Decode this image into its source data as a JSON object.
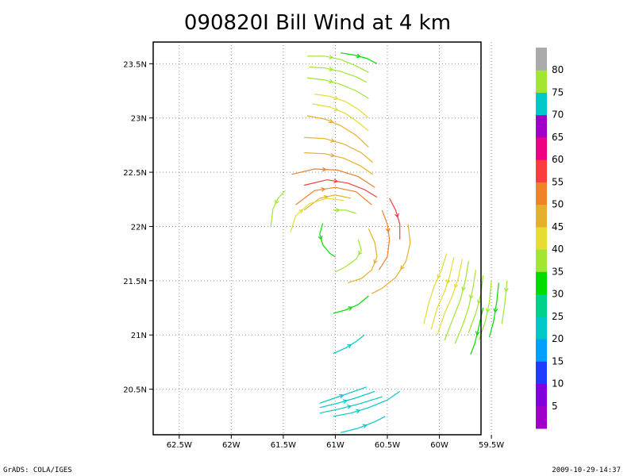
{
  "chart_data": {
    "type": "streamline",
    "title": "090820I Bill Wind at 4 km",
    "x_ticks": [
      "62.5W",
      "62W",
      "61.5W",
      "61W",
      "60.5W",
      "60W",
      "59.5W"
    ],
    "x_values": [
      -62.5,
      -62.0,
      -61.5,
      -61.0,
      -60.5,
      -60.0,
      -59.5
    ],
    "y_ticks": [
      "20.5N",
      "21N",
      "21.5N",
      "22N",
      "22.5N",
      "23N",
      "23.5N"
    ],
    "y_values": [
      20.5,
      21.0,
      21.5,
      22.0,
      22.5,
      23.0,
      23.5
    ],
    "xlim": [
      -62.75,
      -59.6
    ],
    "ylim": [
      20.08,
      23.7
    ],
    "grid": true,
    "colorbar": {
      "labels": [
        "5",
        "10",
        "15",
        "20",
        "25",
        "30",
        "35",
        "40",
        "45",
        "50",
        "55",
        "60",
        "65",
        "70",
        "75",
        "80"
      ],
      "colors": [
        "#a000c8",
        "#8200dc",
        "#1e3cff",
        "#00a0ff",
        "#00c8c8",
        "#00d28c",
        "#00dc00",
        "#a0e632",
        "#e6dc32",
        "#e6af2d",
        "#f08228",
        "#fa3c3c",
        "#f00082",
        "#a000c8",
        "#00c8c8",
        "#a0e632",
        "#aaaaaa"
      ]
    },
    "streamlines": [
      {
        "color": "#00dc00",
        "points": [
          [
            -60.95,
            23.6
          ],
          [
            -60.82,
            23.58
          ],
          [
            -60.7,
            23.55
          ],
          [
            -60.6,
            23.5
          ]
        ]
      },
      {
        "color": "#a0e632",
        "points": [
          [
            -61.27,
            23.57
          ],
          [
            -61.1,
            23.57
          ],
          [
            -60.95,
            23.54
          ],
          [
            -60.8,
            23.48
          ],
          [
            -60.68,
            23.42
          ]
        ]
      },
      {
        "color": "#a0e632",
        "points": [
          [
            -61.25,
            23.47
          ],
          [
            -61.1,
            23.46
          ],
          [
            -60.95,
            23.43
          ],
          [
            -60.8,
            23.38
          ],
          [
            -60.7,
            23.33
          ]
        ]
      },
      {
        "color": "#a0e632",
        "points": [
          [
            -61.27,
            23.37
          ],
          [
            -61.1,
            23.35
          ],
          [
            -60.95,
            23.31
          ],
          [
            -60.8,
            23.25
          ],
          [
            -60.68,
            23.18
          ]
        ]
      },
      {
        "color": "#e6dc32",
        "points": [
          [
            -61.2,
            23.22
          ],
          [
            -61.05,
            23.2
          ],
          [
            -60.9,
            23.15
          ],
          [
            -60.78,
            23.08
          ],
          [
            -60.68,
            23.0
          ]
        ]
      },
      {
        "color": "#e6dc32",
        "points": [
          [
            -61.22,
            23.13
          ],
          [
            -61.05,
            23.1
          ],
          [
            -60.9,
            23.04
          ],
          [
            -60.78,
            22.96
          ],
          [
            -60.68,
            22.88
          ]
        ]
      },
      {
        "color": "#e6af2d",
        "points": [
          [
            -61.27,
            23.02
          ],
          [
            -61.1,
            22.99
          ],
          [
            -60.95,
            22.93
          ],
          [
            -60.8,
            22.84
          ],
          [
            -60.68,
            22.73
          ]
        ]
      },
      {
        "color": "#e6af2d",
        "points": [
          [
            -61.3,
            22.82
          ],
          [
            -61.1,
            22.81
          ],
          [
            -60.92,
            22.76
          ],
          [
            -60.75,
            22.68
          ],
          [
            -60.64,
            22.59
          ]
        ]
      },
      {
        "color": "#e6af2d",
        "points": [
          [
            -61.3,
            22.68
          ],
          [
            -61.1,
            22.67
          ],
          [
            -60.92,
            22.63
          ],
          [
            -60.76,
            22.56
          ],
          [
            -60.64,
            22.48
          ]
        ]
      },
      {
        "color": "#f08228",
        "points": [
          [
            -61.42,
            22.48
          ],
          [
            -61.2,
            22.53
          ],
          [
            -60.98,
            22.52
          ],
          [
            -60.78,
            22.46
          ],
          [
            -60.62,
            22.36
          ]
        ]
      },
      {
        "color": "#fa3c3c",
        "points": [
          [
            -61.3,
            22.38
          ],
          [
            -61.08,
            22.43
          ],
          [
            -60.88,
            22.4
          ],
          [
            -60.72,
            22.34
          ],
          [
            -60.6,
            22.27
          ]
        ]
      },
      {
        "color": "#a0e632",
        "points": [
          [
            -61.48,
            22.33
          ],
          [
            -61.55,
            22.26
          ],
          [
            -61.6,
            22.16
          ],
          [
            -61.62,
            22.0
          ]
        ]
      },
      {
        "color": "#f08228",
        "points": [
          [
            -61.38,
            22.2
          ],
          [
            -61.2,
            22.33
          ],
          [
            -61.0,
            22.36
          ],
          [
            -60.8,
            22.32
          ],
          [
            -60.65,
            22.2
          ]
        ]
      },
      {
        "color": "#e6af2d",
        "points": [
          [
            -61.3,
            22.15
          ],
          [
            -61.15,
            22.26
          ],
          [
            -61.0,
            22.29
          ],
          [
            -60.85,
            22.26
          ]
        ]
      },
      {
        "color": "#e6dc32",
        "points": [
          [
            -61.43,
            21.95
          ],
          [
            -61.38,
            22.1
          ],
          [
            -61.25,
            22.21
          ],
          [
            -61.08,
            22.26
          ],
          [
            -60.92,
            22.24
          ]
        ]
      },
      {
        "color": "#a0e632",
        "points": [
          [
            -61.02,
            22.15
          ],
          [
            -60.9,
            22.15
          ],
          [
            -60.8,
            22.12
          ]
        ]
      },
      {
        "color": "#fa3c3c",
        "points": [
          [
            -60.48,
            22.26
          ],
          [
            -60.42,
            22.15
          ],
          [
            -60.38,
            22.02
          ],
          [
            -60.38,
            21.88
          ]
        ]
      },
      {
        "color": "#f08228",
        "points": [
          [
            -60.55,
            22.15
          ],
          [
            -60.5,
            22.02
          ],
          [
            -60.48,
            21.88
          ],
          [
            -60.5,
            21.72
          ],
          [
            -60.58,
            21.6
          ]
        ]
      },
      {
        "color": "#e6af2d",
        "points": [
          [
            -60.3,
            22.02
          ],
          [
            -60.28,
            21.85
          ],
          [
            -60.32,
            21.68
          ],
          [
            -60.42,
            21.53
          ],
          [
            -60.55,
            21.43
          ],
          [
            -60.65,
            21.38
          ]
        ]
      },
      {
        "color": "#e6af2d",
        "points": [
          [
            -60.68,
            21.98
          ],
          [
            -60.62,
            21.85
          ],
          [
            -60.6,
            21.72
          ],
          [
            -60.65,
            21.6
          ],
          [
            -60.75,
            21.52
          ],
          [
            -60.88,
            21.48
          ]
        ]
      },
      {
        "color": "#a0e632",
        "points": [
          [
            -60.78,
            21.88
          ],
          [
            -60.75,
            21.78
          ],
          [
            -60.8,
            21.7
          ],
          [
            -60.9,
            21.63
          ],
          [
            -61.0,
            21.58
          ]
        ]
      },
      {
        "color": "#00dc00",
        "points": [
          [
            -61.12,
            22.03
          ],
          [
            -61.15,
            21.93
          ],
          [
            -61.12,
            21.83
          ],
          [
            -61.05,
            21.75
          ],
          [
            -61.0,
            21.72
          ]
        ]
      },
      {
        "color": "#00dc00",
        "points": [
          [
            -61.02,
            21.2
          ],
          [
            -60.9,
            21.23
          ],
          [
            -60.78,
            21.28
          ],
          [
            -60.68,
            21.36
          ]
        ]
      },
      {
        "color": "#00c8c8",
        "points": [
          [
            -61.02,
            20.83
          ],
          [
            -60.9,
            20.88
          ],
          [
            -60.8,
            20.94
          ],
          [
            -60.72,
            21.0
          ]
        ]
      },
      {
        "color": "#e6dc32",
        "points": [
          [
            -59.93,
            21.75
          ],
          [
            -59.98,
            21.6
          ],
          [
            -60.05,
            21.45
          ],
          [
            -60.1,
            21.3
          ],
          [
            -60.15,
            21.1
          ]
        ]
      },
      {
        "color": "#e6dc32",
        "points": [
          [
            -59.86,
            21.72
          ],
          [
            -59.9,
            21.55
          ],
          [
            -59.95,
            21.4
          ],
          [
            -60.02,
            21.25
          ],
          [
            -60.08,
            21.05
          ]
        ]
      },
      {
        "color": "#e6dc32",
        "points": [
          [
            -59.78,
            21.7
          ],
          [
            -59.82,
            21.52
          ],
          [
            -59.88,
            21.35
          ],
          [
            -59.95,
            21.2
          ],
          [
            -60.02,
            21.0
          ]
        ]
      },
      {
        "color": "#a0e632",
        "points": [
          [
            -59.72,
            21.68
          ],
          [
            -59.75,
            21.5
          ],
          [
            -59.8,
            21.32
          ],
          [
            -59.87,
            21.15
          ],
          [
            -59.95,
            20.95
          ]
        ]
      },
      {
        "color": "#a0e632",
        "points": [
          [
            -59.65,
            21.6
          ],
          [
            -59.68,
            21.42
          ],
          [
            -59.72,
            21.25
          ],
          [
            -59.78,
            21.08
          ],
          [
            -59.85,
            20.92
          ]
        ]
      },
      {
        "color": "#a0e632",
        "points": [
          [
            -59.58,
            21.55
          ],
          [
            -59.6,
            21.38
          ],
          [
            -59.65,
            21.2
          ],
          [
            -59.72,
            21.02
          ]
        ]
      },
      {
        "color": "#a0e632",
        "points": [
          [
            -59.5,
            21.5
          ],
          [
            -59.52,
            21.3
          ],
          [
            -59.56,
            21.12
          ],
          [
            -59.62,
            20.95
          ]
        ]
      },
      {
        "color": "#00dc00",
        "points": [
          [
            -59.58,
            21.25
          ],
          [
            -59.62,
            21.08
          ],
          [
            -59.66,
            20.92
          ],
          [
            -59.7,
            20.82
          ]
        ]
      },
      {
        "color": "#00dc00",
        "points": [
          [
            -59.43,
            21.48
          ],
          [
            -59.45,
            21.3
          ],
          [
            -59.48,
            21.12
          ],
          [
            -59.52,
            20.98
          ]
        ]
      },
      {
        "color": "#a0e632",
        "points": [
          [
            -59.35,
            21.5
          ],
          [
            -59.37,
            21.3
          ],
          [
            -59.4,
            21.1
          ]
        ]
      },
      {
        "color": "#00c8c8",
        "points": [
          [
            -61.15,
            20.37
          ],
          [
            -61.0,
            20.42
          ],
          [
            -60.85,
            20.47
          ],
          [
            -60.7,
            20.52
          ]
        ]
      },
      {
        "color": "#00c8c8",
        "points": [
          [
            -61.15,
            20.33
          ],
          [
            -60.98,
            20.37
          ],
          [
            -60.8,
            20.42
          ],
          [
            -60.62,
            20.48
          ]
        ]
      },
      {
        "color": "#00c8c8",
        "points": [
          [
            -61.15,
            20.28
          ],
          [
            -60.95,
            20.32
          ],
          [
            -60.75,
            20.37
          ],
          [
            -60.55,
            20.43
          ]
        ]
      },
      {
        "color": "#00c8c8",
        "points": [
          [
            -61.02,
            20.25
          ],
          [
            -60.85,
            20.28
          ],
          [
            -60.68,
            20.33
          ],
          [
            -60.5,
            20.4
          ],
          [
            -60.38,
            20.48
          ]
        ]
      },
      {
        "color": "#00c8c8",
        "points": [
          [
            -60.95,
            20.1
          ],
          [
            -60.78,
            20.14
          ],
          [
            -60.62,
            20.2
          ],
          [
            -60.52,
            20.25
          ]
        ]
      }
    ]
  },
  "footer": {
    "left": "GrADS: COLA/IGES",
    "right": "2009-10-29-14:37"
  }
}
